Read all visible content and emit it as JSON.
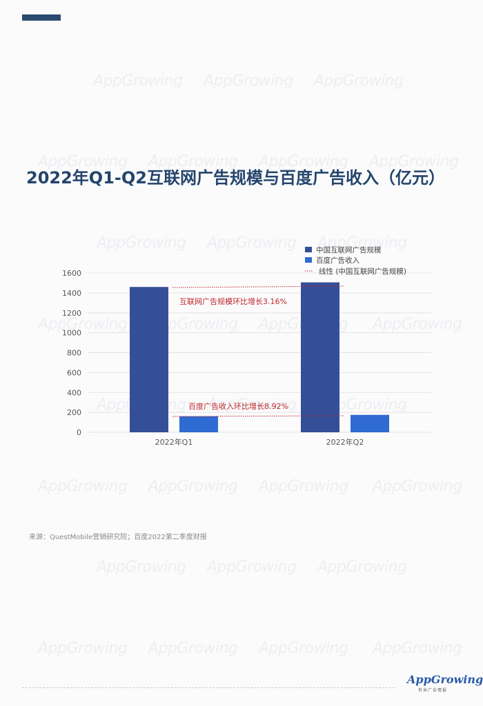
{
  "title": "2022年Q1-Q2互联网广告规模与百度广告收入（亿元）",
  "source": "来源：QuestMobile营销研究院；百度2022第二季度财报",
  "watermark": "AppGrowing",
  "logo": {
    "name": "AppGrowing",
    "tagline": "有米广告情报"
  },
  "colors": {
    "series1": "#344f97",
    "series2": "#2f6bd0",
    "trendline": "#c0282b",
    "title": "#24456c"
  },
  "chart_data": {
    "type": "bar",
    "categories": [
      "2022年Q1",
      "2022年Q2"
    ],
    "series": [
      {
        "name": "中国互联网广告规模",
        "values": [
          1460,
          1506
        ]
      },
      {
        "name": "百度广告收入",
        "values": [
          160,
          175
        ]
      }
    ],
    "trendline_legend": "线性 (中国互联网广告规模)",
    "y_ticks": [
      0,
      200,
      400,
      600,
      800,
      1000,
      1200,
      1400,
      1600
    ],
    "ylim": [
      0,
      1600
    ],
    "grid": true,
    "legend_position": "top-right",
    "annotations": [
      {
        "text": "互联网广告规模环比增长3.16%",
        "series": 0
      },
      {
        "text": "百度广告收入环比增长8.92%",
        "series": 1
      }
    ]
  }
}
